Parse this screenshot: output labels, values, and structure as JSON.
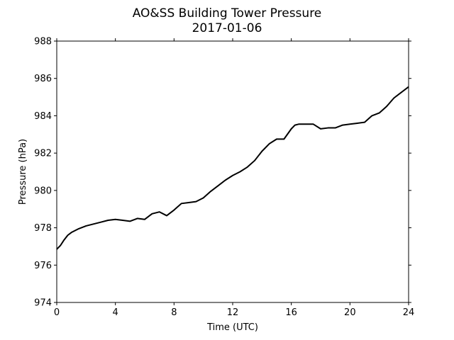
{
  "chart_data": {
    "type": "line",
    "title": "AO&SS Building Tower Pressure",
    "subtitle": "2017-01-06",
    "xlabel": "Time (UTC)",
    "ylabel": "Pressure (hPa)",
    "xlim": [
      0,
      24
    ],
    "ylim": [
      974,
      988
    ],
    "xticks": [
      0,
      4,
      8,
      12,
      16,
      20,
      24
    ],
    "yticks": [
      974,
      976,
      978,
      980,
      982,
      984,
      986,
      988
    ],
    "grid": false,
    "line_color": "#000000",
    "series": [
      {
        "x": [
          0,
          0.25,
          0.5,
          0.75,
          1,
          1.5,
          2,
          2.5,
          3,
          3.5,
          4,
          4.5,
          5,
          5.5,
          6,
          6.5,
          7,
          7.5,
          8,
          8.5,
          9,
          9.5,
          10,
          10.5,
          11,
          11.5,
          12,
          12.5,
          13,
          13.5,
          14,
          14.5,
          15,
          15.5,
          16,
          16.25,
          16.5,
          17,
          17.5,
          18,
          18.5,
          19,
          19.5,
          20,
          20.5,
          21,
          21.5,
          22,
          22.5,
          23,
          23.5,
          24
        ],
        "y": [
          976.85,
          977.05,
          977.35,
          977.6,
          977.75,
          977.95,
          978.1,
          978.2,
          978.3,
          978.4,
          978.45,
          978.4,
          978.35,
          978.5,
          978.45,
          978.75,
          978.85,
          978.65,
          978.95,
          979.3,
          979.35,
          979.4,
          979.6,
          979.95,
          980.25,
          980.55,
          980.8,
          981.0,
          981.25,
          981.6,
          982.1,
          982.5,
          982.75,
          982.75,
          983.3,
          983.5,
          983.55,
          983.55,
          983.55,
          983.3,
          983.35,
          983.35,
          983.5,
          983.55,
          983.6,
          983.65,
          984.0,
          984.15,
          984.5,
          984.95,
          985.25,
          985.55
        ]
      }
    ]
  }
}
